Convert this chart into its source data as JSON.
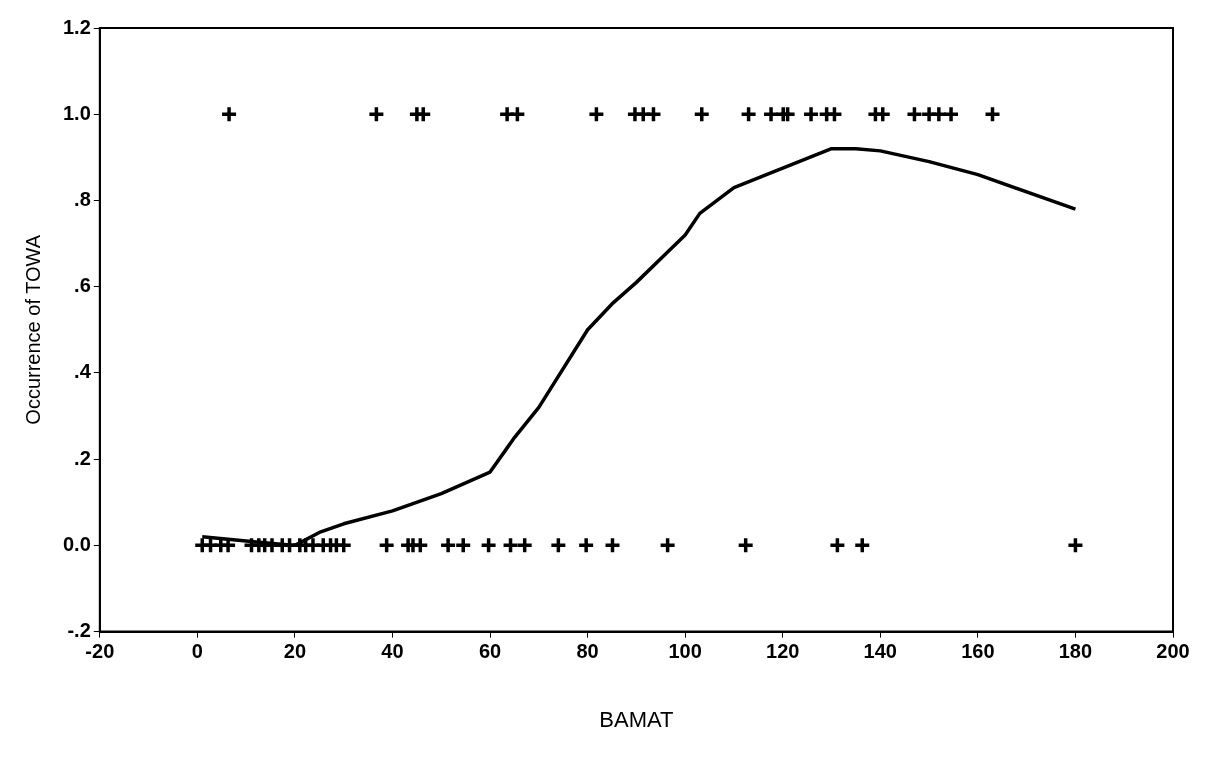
{
  "chart_data": {
    "type": "scatter",
    "xlabel": "BAMAT",
    "ylabel": "Occurrence of TOWA",
    "xlim": [
      -20,
      200
    ],
    "ylim": [
      -0.2,
      1.2
    ],
    "xticks": [
      -20,
      0,
      20,
      40,
      60,
      80,
      100,
      120,
      140,
      160,
      180,
      200
    ],
    "yticks": [
      {
        "value": -0.2,
        "label": "-.2"
      },
      {
        "value": 0,
        "label": "0.0"
      },
      {
        "value": 0.2,
        "label": ".2"
      },
      {
        "value": 0.4,
        "label": ".4"
      },
      {
        "value": 0.6,
        "label": ".6"
      },
      {
        "value": 0.8,
        "label": ".8"
      },
      {
        "value": 1,
        "label": "1.0"
      },
      1.2
    ],
    "grid": false,
    "legend": false,
    "marker": "cross",
    "series": [
      {
        "type": "scatter",
        "color": "#000000",
        "x": [
          6.5,
          36.7,
          45,
          46.3,
          63.5,
          65.6,
          81.8,
          89.7,
          91.4,
          93.5,
          103.4,
          113,
          117.6,
          120.1,
          121,
          125.8,
          129,
          130.6,
          139,
          140.5,
          147,
          150,
          152,
          154.5,
          163
        ],
        "values": [
          1,
          1,
          1,
          1,
          1,
          1,
          1,
          1,
          1,
          1,
          1,
          1,
          1,
          1,
          1,
          1,
          1,
          1,
          1,
          1,
          1,
          1,
          1,
          1,
          1
        ]
      },
      {
        "type": "scatter",
        "color": "#000000",
        "x": [
          1,
          2.7,
          4.8,
          6.3,
          11.1,
          12.6,
          13.8,
          15.3,
          17.4,
          18.9,
          21,
          22.2,
          23.7,
          25.8,
          27.3,
          28.5,
          30,
          38.8,
          43.2,
          44.2,
          45.7,
          51.4,
          54.5,
          59.7,
          64.2,
          67.1,
          74,
          79.7,
          85.1,
          96.4,
          112.4,
          131.2,
          136.3,
          180
        ],
        "values": [
          0,
          0,
          0,
          0,
          0,
          0,
          0,
          0,
          0,
          0,
          0,
          0,
          0,
          0,
          0,
          0,
          0,
          0,
          0,
          0,
          0,
          0,
          0,
          0,
          0,
          0,
          0,
          0,
          0,
          0,
          0,
          0,
          0,
          0
        ]
      },
      {
        "type": "line",
        "color": "#000000",
        "line_style": "solid",
        "marker": "none",
        "x": [
          1,
          10,
          20,
          25,
          30,
          40,
          50,
          60,
          65,
          70,
          80,
          85,
          90,
          100,
          103,
          110,
          120,
          130,
          135,
          140,
          150,
          160,
          180
        ],
        "values": [
          0.02,
          0.01,
          0,
          0.03,
          0.05,
          0.08,
          0.12,
          0.17,
          0.25,
          0.32,
          0.5,
          0.56,
          0.61,
          0.72,
          0.77,
          0.83,
          0.875,
          0.92,
          0.92,
          0.915,
          0.89,
          0.86,
          0.78
        ]
      }
    ]
  }
}
